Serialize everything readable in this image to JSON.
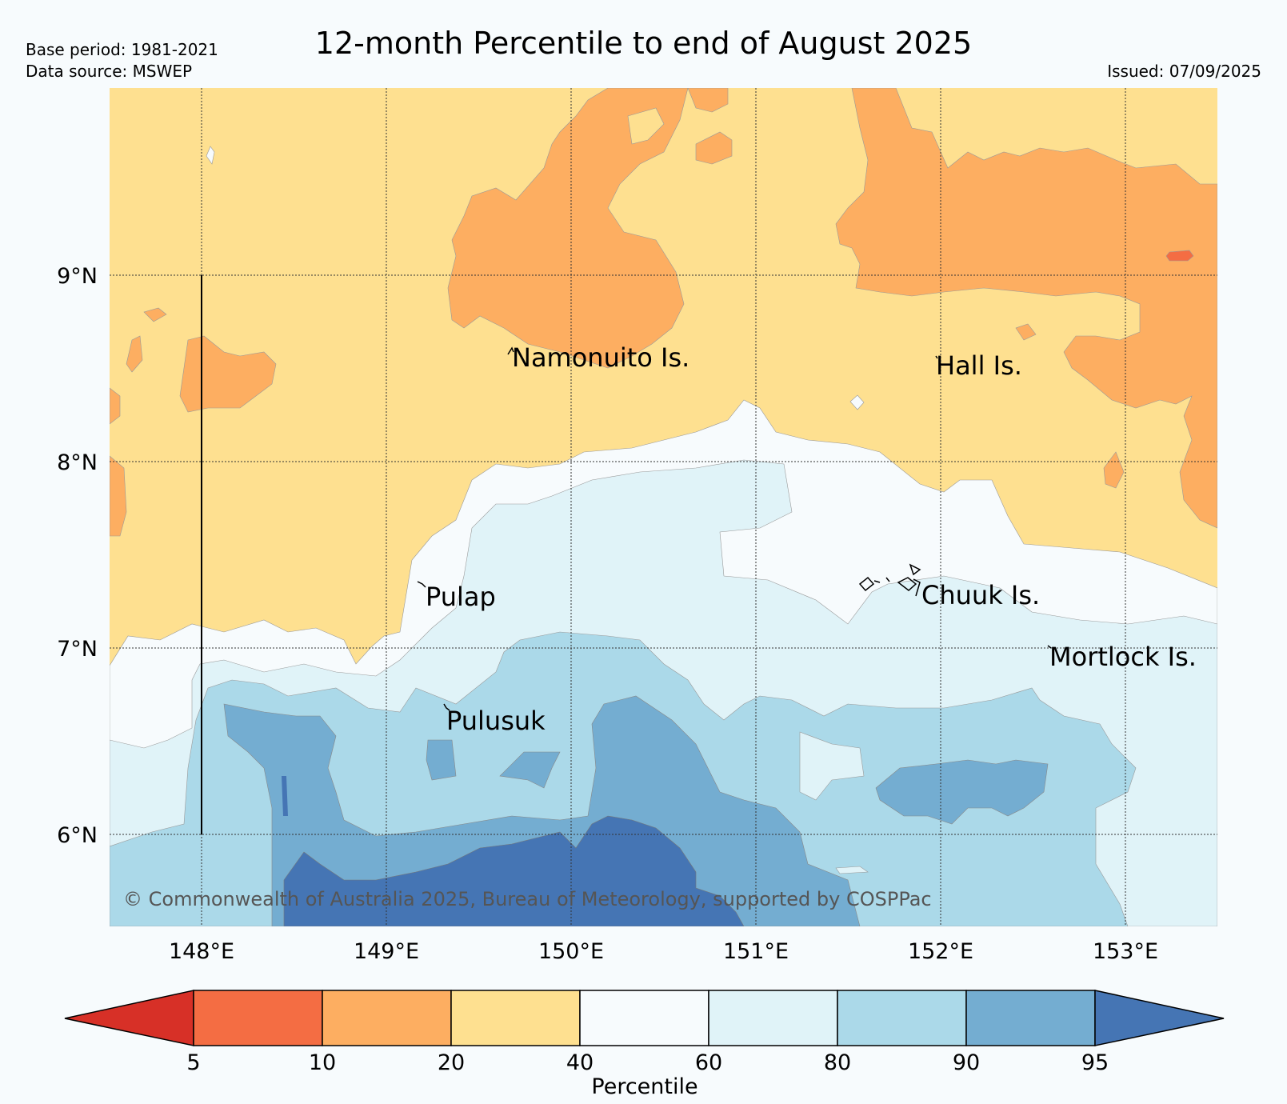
{
  "header": {
    "base_period": "Base period: 1981-2021",
    "data_source": "Data source: MSWEP",
    "issued": "Issued: 07/09/2025",
    "title": "12-month Percentile to end of August 2025"
  },
  "map": {
    "lon_ticks": [
      "148°E",
      "149°E",
      "150°E",
      "151°E",
      "152°E",
      "153°E"
    ],
    "lat_ticks": [
      "9°N",
      "8°N",
      "7°N",
      "6°N"
    ],
    "places": [
      "Namonuito Is.",
      "Hall Is.",
      "Pulap",
      "Chuuk Is.",
      "Mortlock Is.",
      "Pulusuk"
    ],
    "copyright": "© Commonwealth of Australia 2025, Bureau of Meteorology, supported by COSPPac"
  },
  "legend": {
    "title": "Percentile",
    "tick_labels": [
      "5",
      "10",
      "20",
      "40",
      "60",
      "80",
      "90",
      "95"
    ],
    "colors": [
      "#d73027",
      "#f46d43",
      "#fdae61",
      "#fee090",
      "#f7fbfd",
      "#e0f3f8",
      "#abd9e9",
      "#74add1",
      "#4575b4"
    ]
  }
}
